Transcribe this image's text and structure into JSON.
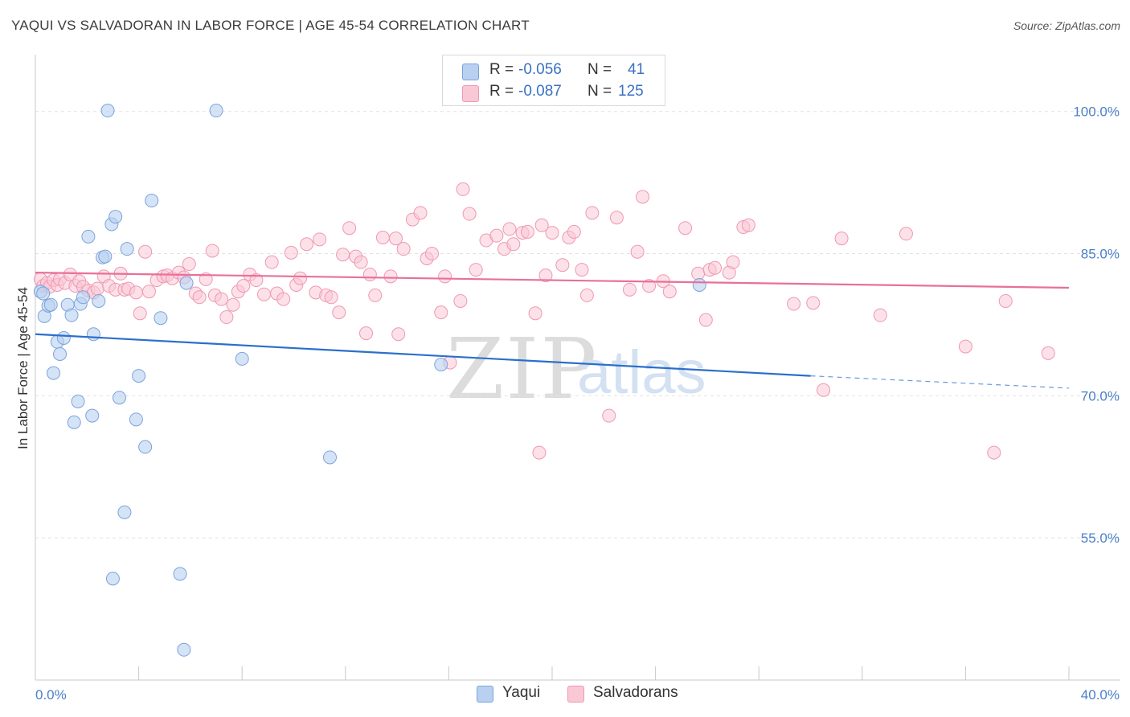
{
  "header": {
    "title": "YAQUI VS SALVADORAN IN LABOR FORCE | AGE 45-54 CORRELATION CHART",
    "source": "Source: ZipAtlas.com"
  },
  "watermark": {
    "zip": "ZIP",
    "atlas": "atlas"
  },
  "legend": {
    "yaqui": {
      "r_label": "R =",
      "r_value": "-0.056",
      "n_label": "N =",
      "n_value": "41"
    },
    "salvadoran": {
      "r_label": "R =",
      "r_value": "-0.087",
      "n_label": "N =",
      "n_value": "125"
    }
  },
  "bottom_legend": {
    "yaqui": "Yaqui",
    "salvadoran": "Salvadorans"
  },
  "colors": {
    "yaqui_fill": "#b9d0f0",
    "yaqui_stroke": "#7aa4dc",
    "yaqui_line": "#2b6fcc",
    "salv_fill": "#f9c8d6",
    "salv_stroke": "#ef98b4",
    "salv_line": "#e8709a",
    "grid": "#e2e2e2",
    "tick_text": "#4a80c8"
  },
  "chart_data": {
    "type": "scatter",
    "title": "YAQUI VS SALVADORAN IN LABOR FORCE | AGE 45-54 CORRELATION CHART",
    "xlabel": "",
    "ylabel": "In Labor Force | Age 45-54",
    "xlim": [
      0,
      40
    ],
    "ylim": [
      40,
      106
    ],
    "x_tick_labels": [
      "0.0%",
      "40.0%"
    ],
    "y_ticks": [
      55,
      70,
      85,
      100
    ],
    "y_tick_labels": [
      "55.0%",
      "70.0%",
      "85.0%",
      "100.0%"
    ],
    "series": [
      {
        "name": "Yaqui",
        "r": -0.056,
        "n": 41,
        "trend": {
          "x0": 0,
          "y0": 76.5,
          "x1": 30,
          "y1": 72.1,
          "dash_to_x": 40,
          "dash_to_y": 70.8
        },
        "points": [
          [
            0.2,
            81
          ],
          [
            0.3,
            80.8
          ],
          [
            0.35,
            78.4
          ],
          [
            0.5,
            79.5
          ],
          [
            0.6,
            79.6
          ],
          [
            0.7,
            72.4
          ],
          [
            0.85,
            75.7
          ],
          [
            0.95,
            74.4
          ],
          [
            1.1,
            76.1
          ],
          [
            1.25,
            79.6
          ],
          [
            1.4,
            78.5
          ],
          [
            1.5,
            67.2
          ],
          [
            1.65,
            69.4
          ],
          [
            1.75,
            79.7
          ],
          [
            1.85,
            80.4
          ],
          [
            2.05,
            86.8
          ],
          [
            2.2,
            67.9
          ],
          [
            2.25,
            76.5
          ],
          [
            2.45,
            80
          ],
          [
            2.6,
            84.6
          ],
          [
            2.7,
            84.7
          ],
          [
            2.8,
            100.1
          ],
          [
            2.95,
            88.1
          ],
          [
            3.0,
            50.7
          ],
          [
            3.1,
            88.9
          ],
          [
            3.25,
            69.8
          ],
          [
            3.45,
            57.7
          ],
          [
            3.55,
            85.5
          ],
          [
            3.9,
            67.5
          ],
          [
            4.0,
            72.1
          ],
          [
            4.25,
            64.6
          ],
          [
            4.5,
            90.6
          ],
          [
            4.85,
            78.2
          ],
          [
            5.6,
            51.2
          ],
          [
            5.75,
            43.2
          ],
          [
            5.85,
            81.9
          ],
          [
            7.0,
            100.1
          ],
          [
            8.0,
            73.9
          ],
          [
            11.4,
            63.5
          ],
          [
            15.7,
            73.3
          ],
          [
            25.7,
            81.7
          ]
        ]
      },
      {
        "name": "Salvadorans",
        "r": -0.087,
        "n": 125,
        "trend": {
          "x0": 0,
          "y0": 83.0,
          "x1": 40,
          "y1": 81.4
        },
        "points": [
          [
            0.2,
            82.3
          ],
          [
            0.3,
            81.6
          ],
          [
            0.45,
            81.9
          ],
          [
            0.55,
            81.5
          ],
          [
            0.7,
            82.2
          ],
          [
            0.85,
            81.7
          ],
          [
            0.95,
            82.3
          ],
          [
            1.15,
            81.9
          ],
          [
            1.35,
            82.8
          ],
          [
            1.55,
            81.6
          ],
          [
            1.7,
            82.1
          ],
          [
            1.85,
            81.5
          ],
          [
            2.05,
            81.1
          ],
          [
            2.25,
            80.9
          ],
          [
            2.4,
            81.3
          ],
          [
            2.65,
            82.6
          ],
          [
            2.85,
            81.6
          ],
          [
            3.1,
            81.2
          ],
          [
            3.3,
            82.9
          ],
          [
            3.45,
            81.2
          ],
          [
            3.6,
            81.3
          ],
          [
            3.9,
            80.9
          ],
          [
            4.05,
            78.7
          ],
          [
            4.25,
            85.2
          ],
          [
            4.4,
            81.0
          ],
          [
            4.7,
            82.2
          ],
          [
            4.95,
            82.6
          ],
          [
            5.1,
            82.7
          ],
          [
            5.3,
            82.4
          ],
          [
            5.55,
            83.0
          ],
          [
            5.75,
            82.5
          ],
          [
            5.95,
            83.9
          ],
          [
            6.2,
            80.8
          ],
          [
            6.35,
            80.4
          ],
          [
            6.6,
            82.3
          ],
          [
            6.85,
            85.3
          ],
          [
            6.95,
            80.6
          ],
          [
            7.2,
            80.2
          ],
          [
            7.4,
            78.3
          ],
          [
            7.65,
            79.6
          ],
          [
            7.85,
            81.0
          ],
          [
            8.05,
            81.6
          ],
          [
            8.3,
            82.8
          ],
          [
            8.55,
            82.2
          ],
          [
            8.85,
            80.7
          ],
          [
            9.15,
            84.1
          ],
          [
            9.35,
            80.8
          ],
          [
            9.6,
            80.2
          ],
          [
            9.9,
            85.1
          ],
          [
            10.1,
            81.7
          ],
          [
            10.25,
            82.4
          ],
          [
            10.5,
            86.0
          ],
          [
            10.85,
            80.9
          ],
          [
            11.0,
            86.5
          ],
          [
            11.25,
            80.6
          ],
          [
            11.45,
            80.4
          ],
          [
            11.75,
            78.8
          ],
          [
            11.9,
            84.9
          ],
          [
            12.15,
            87.7
          ],
          [
            12.4,
            84.7
          ],
          [
            12.6,
            84.1
          ],
          [
            12.8,
            76.6
          ],
          [
            12.95,
            82.8
          ],
          [
            13.15,
            80.6
          ],
          [
            13.45,
            86.7
          ],
          [
            13.75,
            82.6
          ],
          [
            13.95,
            86.6
          ],
          [
            14.05,
            76.5
          ],
          [
            14.25,
            85.5
          ],
          [
            14.6,
            88.6
          ],
          [
            14.9,
            89.3
          ],
          [
            15.15,
            84.5
          ],
          [
            15.35,
            85.0
          ],
          [
            15.7,
            78.8
          ],
          [
            15.85,
            82.6
          ],
          [
            16.05,
            73.5
          ],
          [
            16.45,
            80.0
          ],
          [
            16.55,
            91.8
          ],
          [
            16.8,
            89.2
          ],
          [
            17.05,
            83.3
          ],
          [
            17.45,
            86.4
          ],
          [
            17.85,
            86.9
          ],
          [
            18.15,
            85.5
          ],
          [
            18.35,
            87.6
          ],
          [
            18.5,
            86.0
          ],
          [
            18.85,
            87.2
          ],
          [
            19.05,
            87.3
          ],
          [
            19.35,
            78.7
          ],
          [
            19.6,
            88.0
          ],
          [
            19.75,
            82.7
          ],
          [
            20.0,
            87.2
          ],
          [
            20.4,
            83.8
          ],
          [
            20.65,
            86.7
          ],
          [
            20.85,
            87.3
          ],
          [
            21.15,
            83.3
          ],
          [
            21.35,
            80.6
          ],
          [
            21.55,
            89.3
          ],
          [
            22.2,
            67.9
          ],
          [
            22.5,
            88.8
          ],
          [
            23.0,
            81.2
          ],
          [
            23.3,
            85.2
          ],
          [
            23.5,
            91.0
          ],
          [
            23.75,
            81.6
          ],
          [
            24.3,
            82.1
          ],
          [
            24.55,
            81.0
          ],
          [
            25.15,
            87.7
          ],
          [
            25.65,
            82.9
          ],
          [
            25.95,
            78.0
          ],
          [
            26.1,
            83.3
          ],
          [
            26.3,
            83.5
          ],
          [
            26.85,
            83.0
          ],
          [
            27.0,
            84.1
          ],
          [
            27.4,
            87.8
          ],
          [
            27.6,
            88.0
          ],
          [
            29.35,
            79.7
          ],
          [
            30.1,
            79.8
          ],
          [
            30.5,
            70.6
          ],
          [
            31.2,
            86.6
          ],
          [
            32.7,
            78.5
          ],
          [
            33.7,
            87.1
          ],
          [
            36.0,
            75.2
          ],
          [
            37.1,
            64.0
          ],
          [
            37.55,
            80.0
          ],
          [
            39.2,
            74.5
          ],
          [
            19.5,
            64.0
          ]
        ]
      }
    ]
  }
}
